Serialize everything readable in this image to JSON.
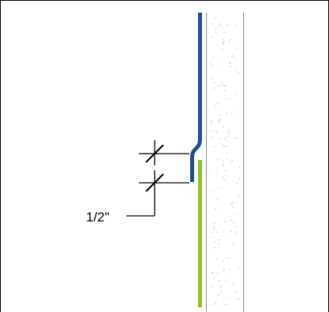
{
  "diagram": {
    "dimension_label": "1/2\"",
    "colors": {
      "upper_flashing": "#1c4f8c",
      "lower_flashing": "#8cc21c",
      "lines": "#000000",
      "wall_outline": "#8a8a8a",
      "stipple": "#9a9a9a",
      "background": "#ffffff"
    }
  }
}
